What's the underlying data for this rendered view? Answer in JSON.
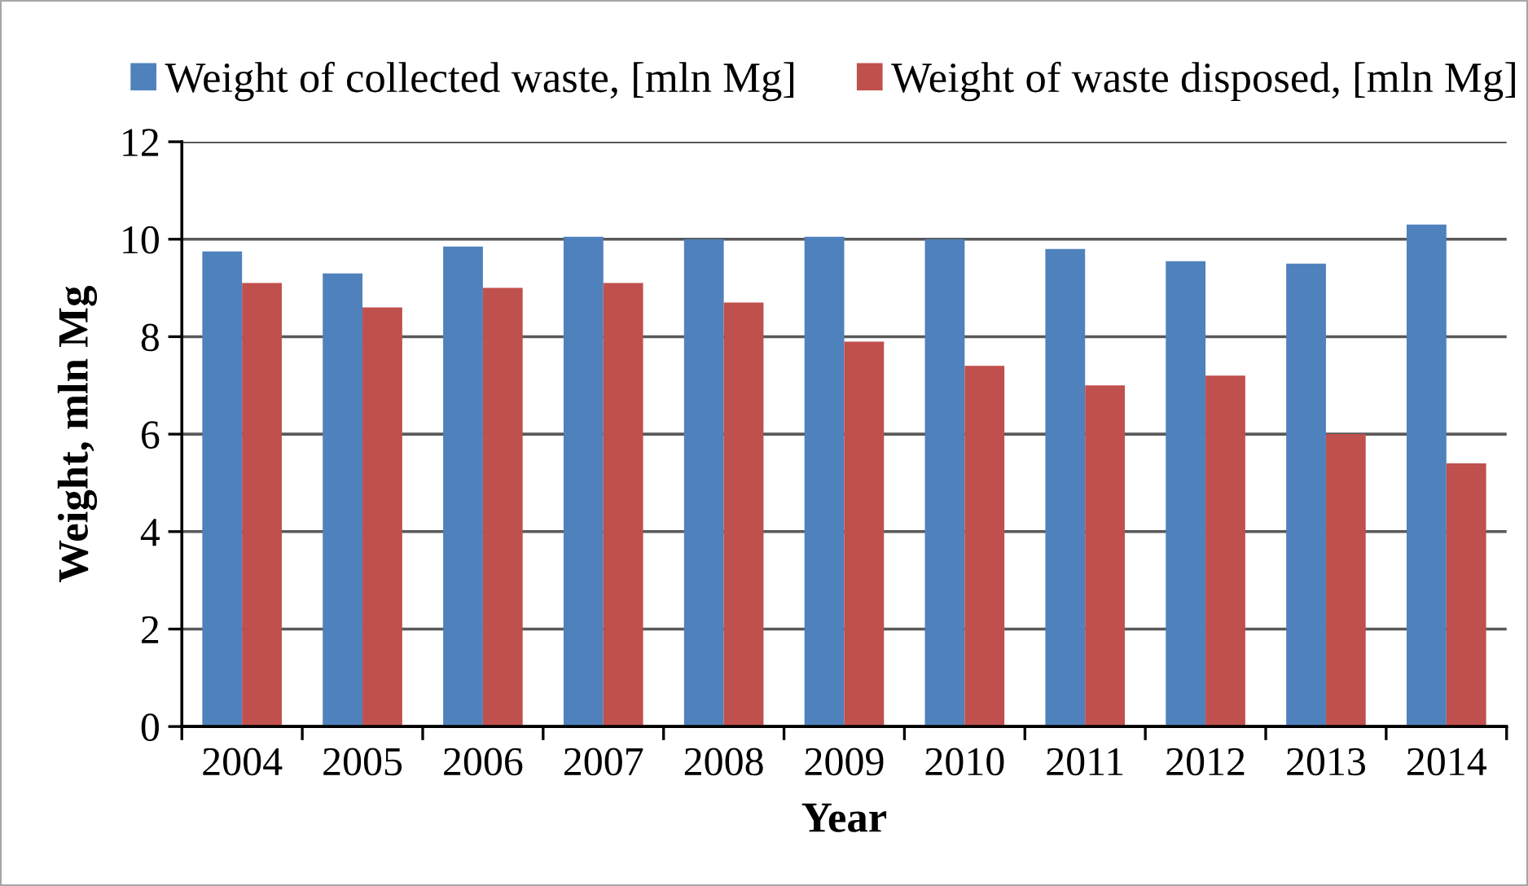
{
  "chart_data": {
    "type": "bar",
    "categories": [
      "2004",
      "2005",
      "2006",
      "2007",
      "2008",
      "2009",
      "2010",
      "2011",
      "2012",
      "2013",
      "2014"
    ],
    "series": [
      {
        "name": "Weight of collected waste, [mln Mg]",
        "color": "#4f81bd",
        "values": [
          9.75,
          9.3,
          9.85,
          10.05,
          10.0,
          10.05,
          10.0,
          9.8,
          9.55,
          9.5,
          10.3
        ]
      },
      {
        "name": "Weight of waste disposed, [mln Mg]",
        "color": "#c0504d",
        "values": [
          9.1,
          8.6,
          9.0,
          9.1,
          8.7,
          7.9,
          7.4,
          7.0,
          7.2,
          6.0,
          5.4
        ]
      }
    ],
    "xlabel": "Year",
    "ylabel": "Weight, mln Mg",
    "ylim": [
      0,
      12
    ],
    "yticks": [
      0,
      2,
      4,
      6,
      8,
      10,
      12
    ],
    "grid": "y",
    "legend": "top"
  }
}
